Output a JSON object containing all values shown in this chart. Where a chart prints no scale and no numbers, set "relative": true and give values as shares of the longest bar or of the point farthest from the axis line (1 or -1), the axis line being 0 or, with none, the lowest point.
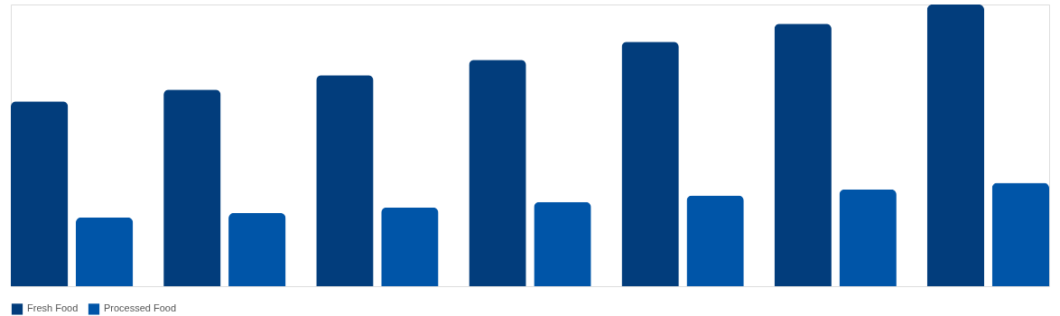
{
  "chart_data": {
    "type": "bar",
    "relative": true,
    "legend": "bottom",
    "categories": [
      null,
      null,
      null,
      null,
      null,
      null,
      null
    ],
    "series": [
      {
        "name": "Fresh Food",
        "color": "#023d7c",
        "values": [
          0.656,
          0.698,
          0.749,
          0.804,
          0.868,
          0.932,
          1
        ]
      },
      {
        "name": "Processed Food",
        "color": "#0055a8",
        "values": [
          0.244,
          0.26,
          0.28,
          0.299,
          0.322,
          0.344,
          0.367
        ]
      }
    ]
  }
}
